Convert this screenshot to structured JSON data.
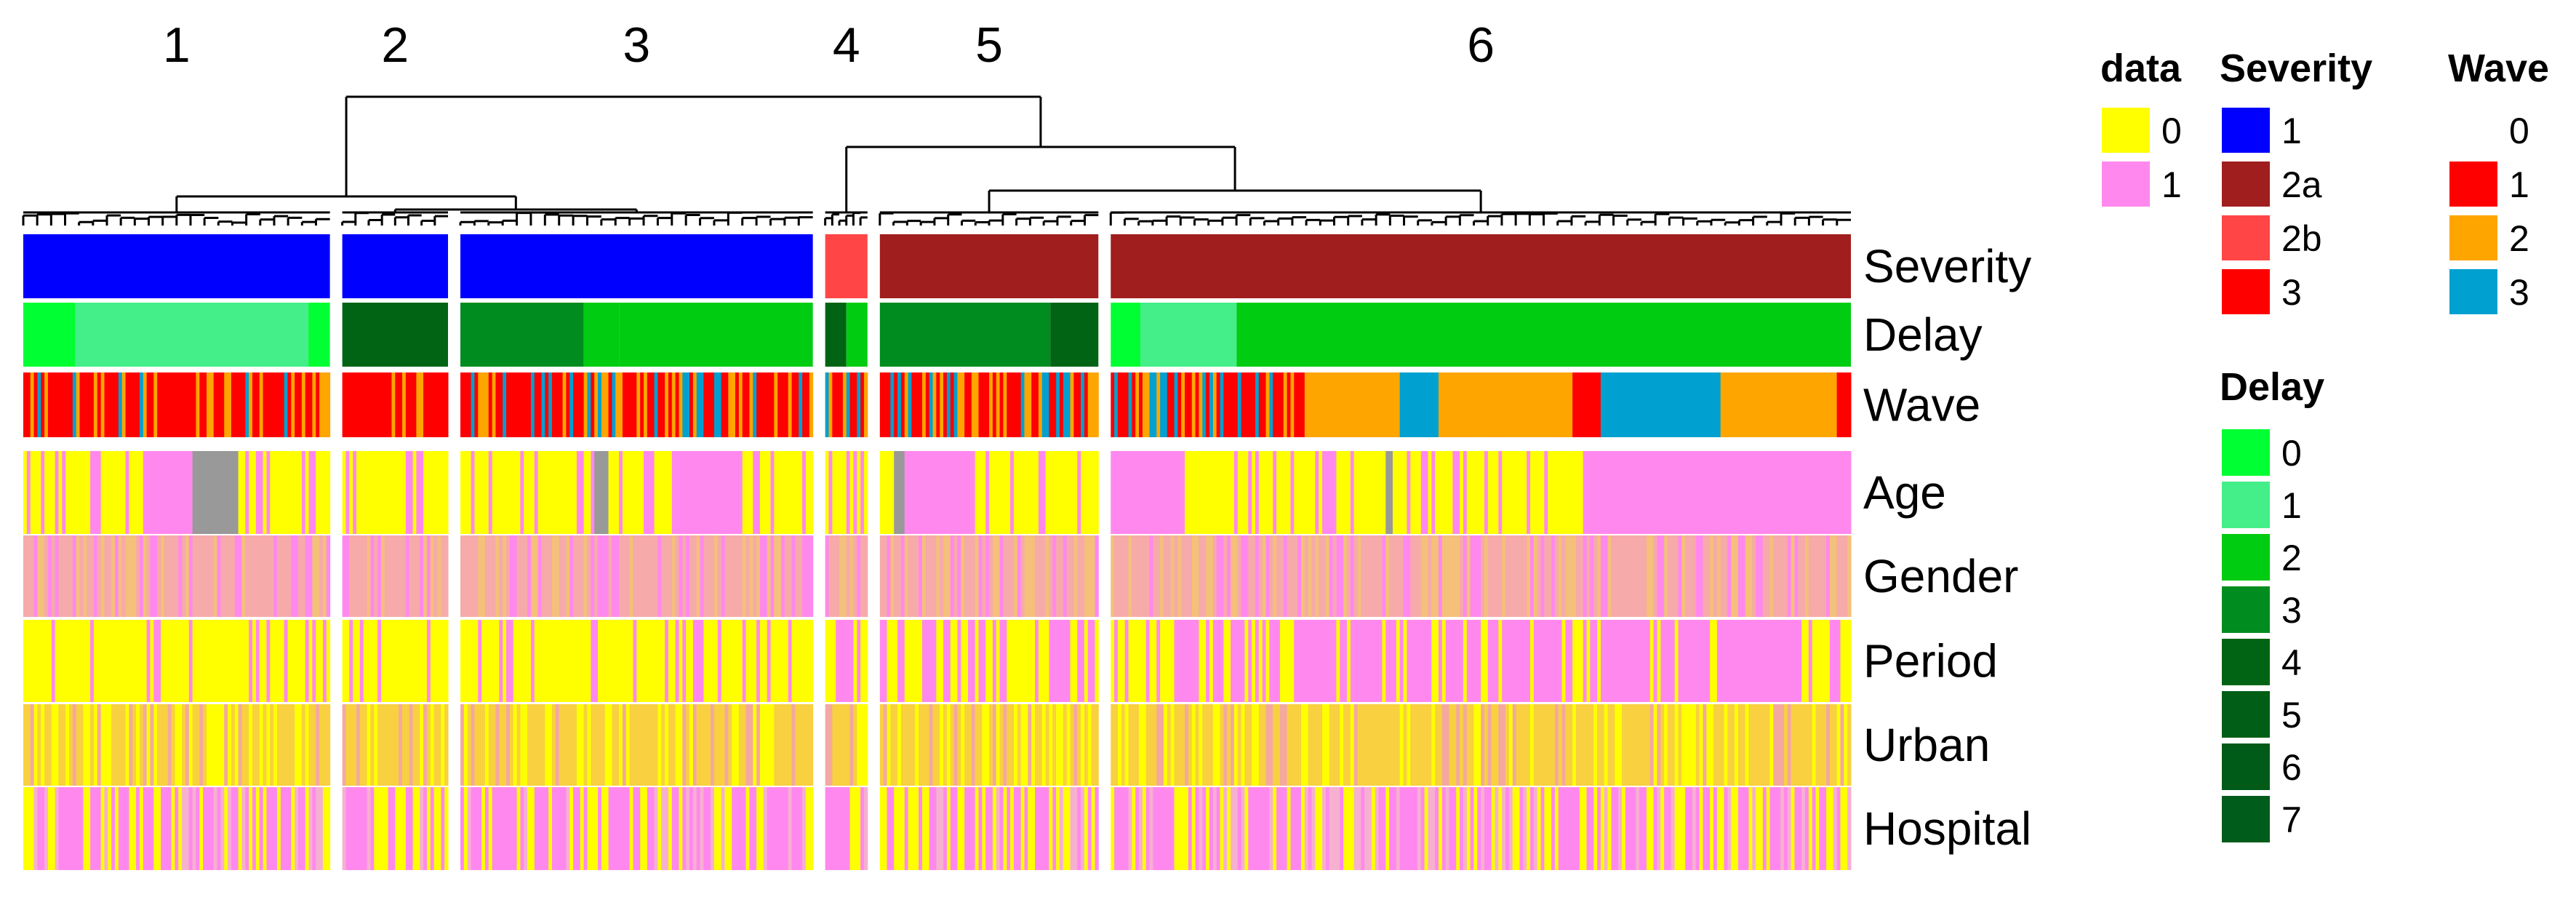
{
  "chart_data": {
    "type": "heatmap",
    "title": "",
    "cluster_labels": [
      "1",
      "2",
      "3",
      "4",
      "5",
      "6"
    ],
    "column_clusters": [
      {
        "label": "1",
        "size": 87,
        "severity": "1",
        "delay": [
          [
            0,
            0.17,
            0
          ],
          [
            0.17,
            0.93,
            1
          ],
          [
            0.93,
            1,
            0
          ]
        ],
        "age": [
          [
            0.55,
            0.7,
            "NA"
          ]
        ],
        "age_pink": [
          [
            0.38,
            0.55
          ]
        ],
        "period_mode": 0
      },
      {
        "label": "2",
        "size": 30,
        "severity": "1",
        "delay": [
          [
            0,
            1,
            4
          ]
        ],
        "age": [],
        "age_pink": [],
        "period_mode": 0
      },
      {
        "label": "3",
        "size": 100,
        "severity": "1",
        "delay": [
          [
            0,
            0.35,
            3
          ],
          [
            0.35,
            0.45,
            2
          ],
          [
            0.45,
            1,
            2
          ]
        ],
        "age": [
          [
            0.38,
            0.42,
            "NA"
          ]
        ],
        "age_pink": [
          [
            0.6,
            0.78
          ]
        ],
        "period_mode": 0
      },
      {
        "label": "4",
        "size": 12,
        "severity": "2b",
        "delay": [
          [
            0,
            0.5,
            4
          ],
          [
            0.5,
            1,
            2
          ]
        ],
        "age": [],
        "age_pink": [],
        "period_mode": 0
      },
      {
        "label": "5",
        "size": 62,
        "severity": "2a",
        "delay": [
          [
            0,
            0.78,
            3
          ],
          [
            0.78,
            1,
            4
          ]
        ],
        "age": [
          [
            0.05,
            0.1,
            "NA"
          ]
        ],
        "age_pink": [
          [
            0.1,
            0.42
          ]
        ],
        "period_mode": 1
      },
      {
        "label": "6",
        "size": 210,
        "severity": "2a",
        "delay": [
          [
            0,
            0.04,
            0
          ],
          [
            0.04,
            0.17,
            1
          ],
          [
            0.17,
            1,
            2
          ]
        ],
        "age": [
          [
            0.37,
            0.38,
            "NA"
          ]
        ],
        "age_pink": [
          [
            0,
            0.1
          ],
          [
            0.64,
            1
          ]
        ],
        "period_mode": 1
      }
    ],
    "annotation_rows": [
      "Severity",
      "Delay",
      "Wave"
    ],
    "data_rows": [
      "Age",
      "Gender",
      "Period",
      "Urban",
      "Hospital"
    ],
    "legends": {
      "data": {
        "title": "data",
        "entries": [
          {
            "label": "0",
            "color": "#FFFF00"
          },
          {
            "label": "1",
            "color": "#FF88EE"
          }
        ]
      },
      "severity": {
        "title": "Severity",
        "entries": [
          {
            "label": "1",
            "color": "#0000FF"
          },
          {
            "label": "2a",
            "color": "#A01E1E"
          },
          {
            "label": "2b",
            "color": "#FF4545"
          },
          {
            "label": "3",
            "color": "#FF0000"
          }
        ]
      },
      "wave": {
        "title": "Wave",
        "entries": [
          {
            "label": "0",
            "color": "#FFFFFF"
          },
          {
            "label": "1",
            "color": "#FF0000"
          },
          {
            "label": "2",
            "color": "#FFA500"
          },
          {
            "label": "3",
            "color": "#00A0D0"
          }
        ]
      },
      "delay": {
        "title": "Delay",
        "entries": [
          {
            "label": "0",
            "color": "#00FF33"
          },
          {
            "label": "1",
            "color": "#44EE88"
          },
          {
            "label": "2",
            "color": "#00CC11"
          },
          {
            "label": "3",
            "color": "#008C1E"
          },
          {
            "label": "4",
            "color": "#006414"
          },
          {
            "label": "5",
            "color": "#005E16"
          },
          {
            "label": "6",
            "color": "#005A18"
          },
          {
            "label": "7",
            "color": "#005C1A"
          }
        ]
      }
    },
    "na_color": "#999999",
    "mixed_color": "#F6AAAA"
  }
}
